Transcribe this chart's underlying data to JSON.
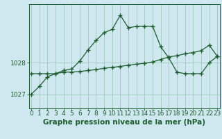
{
  "title": "Graphe pression niveau de la mer (hPa)",
  "background_color": "#cfe8f0",
  "grid_color": "#a0c8bc",
  "line_color": "#1a5c2a",
  "label_fontsize": 6.5,
  "title_fontsize": 7.5,
  "hours": [
    0,
    1,
    2,
    3,
    4,
    5,
    6,
    7,
    8,
    9,
    10,
    11,
    12,
    13,
    14,
    15,
    16,
    17,
    18,
    19,
    20,
    21,
    22,
    23
  ],
  "series1": [
    1027.0,
    1027.25,
    1027.55,
    1027.65,
    1027.75,
    1027.8,
    1028.05,
    1028.4,
    1028.7,
    1028.95,
    1029.05,
    1029.5,
    1029.1,
    1029.15,
    1029.15,
    1029.15,
    1028.5,
    1028.15,
    1027.7,
    1027.65,
    1027.65,
    1027.65,
    1028.0,
    1028.2
  ],
  "series2": [
    1027.65,
    1027.65,
    1027.65,
    1027.65,
    1027.7,
    1027.7,
    1027.72,
    1027.75,
    1027.78,
    1027.82,
    1027.85,
    1027.88,
    1027.92,
    1027.95,
    1027.98,
    1028.02,
    1028.1,
    1028.18,
    1028.22,
    1028.28,
    1028.32,
    1028.38,
    1028.55,
    1028.2
  ],
  "yticks": [
    1027,
    1028
  ],
  "ylim": [
    1026.55,
    1029.85
  ],
  "xlim": [
    -0.3,
    23.3
  ]
}
